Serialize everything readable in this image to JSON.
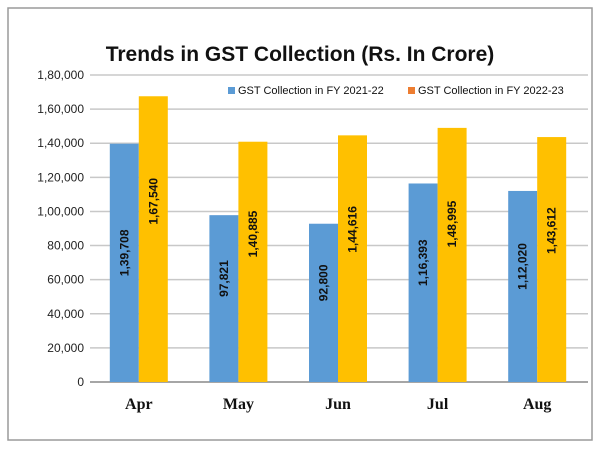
{
  "chart_data": {
    "type": "bar",
    "title": "Trends in GST Collection (Rs. In Crore)",
    "categories": [
      "Apr",
      "May",
      "Jun",
      "Jul",
      "Aug"
    ],
    "series": [
      {
        "name": "GST Collection in FY 2021-22",
        "values": [
          139708,
          97821,
          92800,
          116393,
          112020
        ],
        "labels": [
          "1,39,708",
          "97,821",
          "92,800",
          "1,16,393",
          "1,12,020"
        ],
        "color": "#5B9BD5",
        "legend_color": "#5B9BD5"
      },
      {
        "name": "GST Collection in FY 2022-23",
        "values": [
          167540,
          140885,
          144616,
          148995,
          143612
        ],
        "labels": [
          "1,67,540",
          "1,40,885",
          "1,44,616",
          "1,48,995",
          "1,43,612"
        ],
        "color": "#FFC000",
        "legend_color": "#ED7D31"
      }
    ],
    "ylim": [
      0,
      180000
    ],
    "yticks": [
      0,
      20000,
      40000,
      60000,
      80000,
      100000,
      120000,
      140000,
      160000,
      180000
    ],
    "ytick_labels": [
      "0",
      "20,000",
      "40,000",
      "60,000",
      "80,000",
      "1,00,000",
      "1,20,000",
      "1,40,000",
      "1,60,000",
      "1,80,000"
    ],
    "xlabel": "",
    "ylabel": "",
    "grid": true,
    "legend_position": "top-right",
    "data_labels": "inside-rotated"
  }
}
